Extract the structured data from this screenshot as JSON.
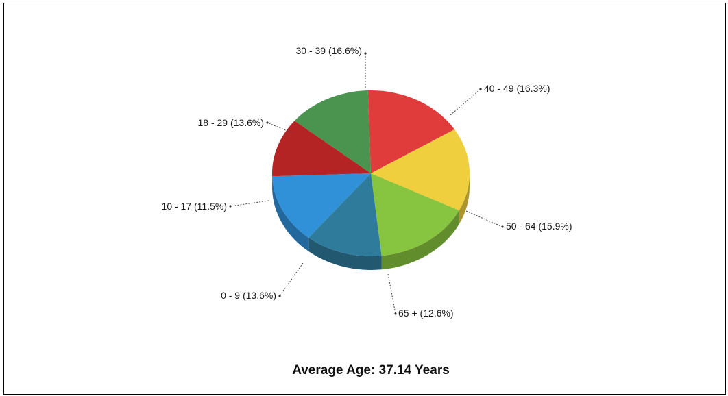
{
  "chart_data": {
    "type": "pie",
    "title": "Average Age: 37.14 Years",
    "slices": [
      {
        "label": "30 - 39 (16.6%)",
        "category": "30 - 39",
        "value": 16.6,
        "color": "#e03c3c"
      },
      {
        "label": "40 - 49 (16.3%)",
        "category": "40 - 49",
        "value": 16.3,
        "color": "#f0cf3e"
      },
      {
        "label": "50 - 64 (15.9%)",
        "category": "50 - 64",
        "value": 15.9,
        "color": "#87c43f"
      },
      {
        "label": "65 + (12.6%)",
        "category": "65 +",
        "value": 12.6,
        "color": "#2f7b9c"
      },
      {
        "label": "0 - 9 (13.6%)",
        "category": "0 - 9",
        "value": 13.6,
        "color": "#3090d8"
      },
      {
        "label": "10 - 17 (11.5%)",
        "category": "10 - 17",
        "value": 11.5,
        "color": "#b52424"
      },
      {
        "label": "18 - 29 (13.6%)",
        "category": "18 - 29",
        "value": 13.6,
        "color": "#4a9450"
      }
    ],
    "legend": "none"
  }
}
